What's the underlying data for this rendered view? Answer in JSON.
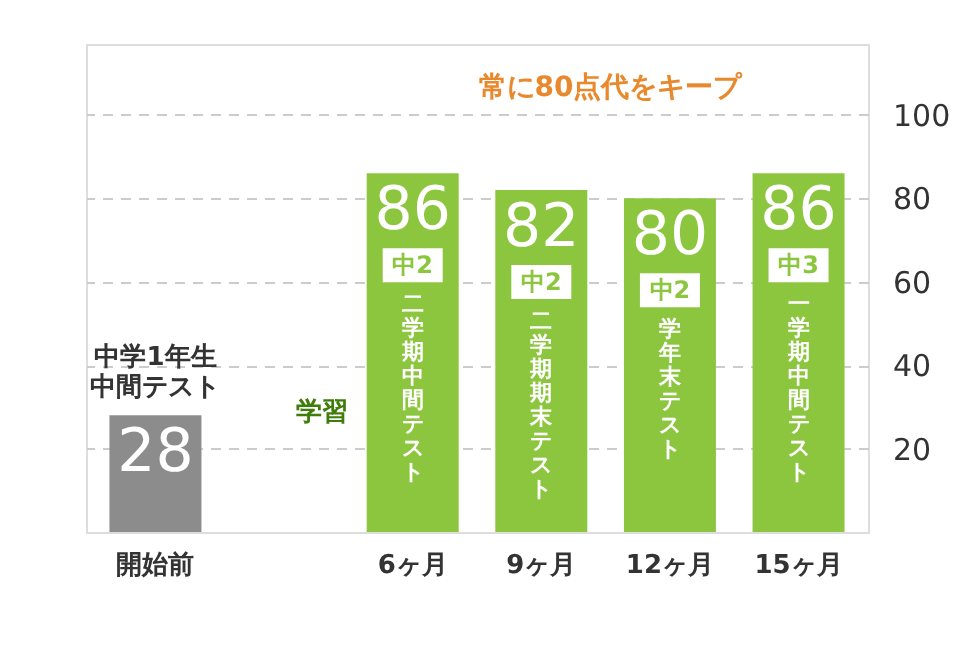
{
  "chart_data": {
    "type": "bar",
    "categories": [
      "開始前",
      null,
      "6ヶ月",
      "9ヶ月",
      "12ヶ月",
      "15ヶ月"
    ],
    "values": [
      28,
      null,
      86,
      82,
      80,
      86
    ],
    "colors": [
      "#8c8c8c",
      null,
      "#8cc63f",
      "#8cc63f",
      "#8cc63f",
      "#8cc63f"
    ],
    "data_labels": true,
    "ylim": [
      0,
      117
    ],
    "yticks": [
      20,
      40,
      60,
      80,
      100
    ],
    "grid": "y",
    "annotations": [
      "常に80点代をキープ",
      "学習",
      "中学1年生中間テスト",
      "中2",
      "二学期中間テスト",
      "中2",
      "二学期期末テスト",
      "中2",
      "学年末テスト",
      "中3",
      "一学期中間テスト"
    ]
  }
}
